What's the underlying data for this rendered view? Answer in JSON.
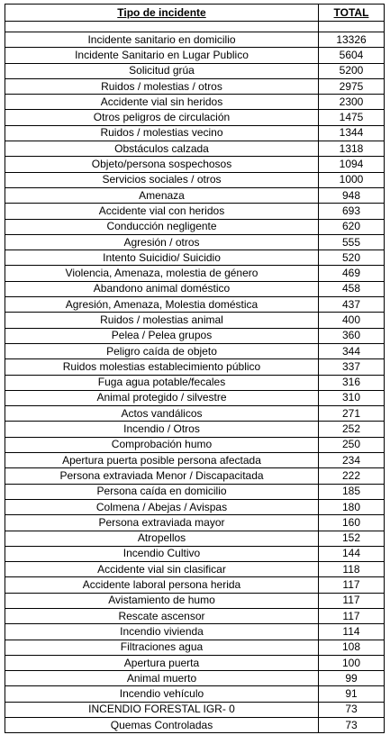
{
  "header": {
    "col_type": "Tipo de incidente",
    "col_total": "TOTAL"
  },
  "rows": [
    {
      "name": "Incidente sanitario en domicilio",
      "total": "13326"
    },
    {
      "name": "Incidente Sanitario en Lugar Publico",
      "total": "5604"
    },
    {
      "name": "Solicitud grúa",
      "total": "5200"
    },
    {
      "name": "Ruidos / molestias / otros",
      "total": "2975"
    },
    {
      "name": "Accidente vial sin heridos",
      "total": "2300"
    },
    {
      "name": "Otros peligros de circulación",
      "total": "1475"
    },
    {
      "name": "Ruidos / molestias vecino",
      "total": "1344"
    },
    {
      "name": "Obstáculos calzada",
      "total": "1318"
    },
    {
      "name": "Objeto/persona sospechosos",
      "total": "1094"
    },
    {
      "name": "Servicios sociales / otros",
      "total": "1000"
    },
    {
      "name": "Amenaza",
      "total": "948"
    },
    {
      "name": "Accidente vial con heridos",
      "total": "693"
    },
    {
      "name": "Conducción negligente",
      "total": "620"
    },
    {
      "name": "Agresión / otros",
      "total": "555"
    },
    {
      "name": "Intento Suicidio/ Suicidio",
      "total": "520"
    },
    {
      "name": "Violencia, Amenaza, molestia de género",
      "total": "469"
    },
    {
      "name": "Abandono animal doméstico",
      "total": "458"
    },
    {
      "name": "Agresión, Amenaza, Molestia doméstica",
      "total": "437"
    },
    {
      "name": "Ruidos / molestias animal",
      "total": "400"
    },
    {
      "name": "Pelea / Pelea grupos",
      "total": "360"
    },
    {
      "name": "Peligro caída de objeto",
      "total": "344"
    },
    {
      "name": "Ruidos molestias establecimiento público",
      "total": "337"
    },
    {
      "name": "Fuga agua potable/fecales",
      "total": "316"
    },
    {
      "name": "Animal protegido / silvestre",
      "total": "310"
    },
    {
      "name": "Actos vandálicos",
      "total": "271"
    },
    {
      "name": "Incendio / Otros",
      "total": "252"
    },
    {
      "name": "Comprobación humo",
      "total": "250"
    },
    {
      "name": "Apertura puerta posible persona afectada",
      "total": "234"
    },
    {
      "name": "Persona extraviada Menor / Discapacitada",
      "total": "222"
    },
    {
      "name": "Persona caída en domicilio",
      "total": "185"
    },
    {
      "name": "Colmena / Abejas / Avispas",
      "total": "180"
    },
    {
      "name": "Persona extraviada mayor",
      "total": "160"
    },
    {
      "name": "Atropellos",
      "total": "152"
    },
    {
      "name": "Incendio Cultivo",
      "total": "144"
    },
    {
      "name": "Accidente vial sin clasificar",
      "total": "118"
    },
    {
      "name": "Accidente laboral persona herida",
      "total": "117"
    },
    {
      "name": "Avistamiento de humo",
      "total": "117"
    },
    {
      "name": "Rescate ascensor",
      "total": "117"
    },
    {
      "name": "Incendio vivienda",
      "total": "114"
    },
    {
      "name": "Filtraciones agua",
      "total": "108"
    },
    {
      "name": "Apertura puerta",
      "total": "100"
    },
    {
      "name": "Animal muerto",
      "total": "99"
    },
    {
      "name": "Incendio vehículo",
      "total": "91"
    },
    {
      "name": "INCENDIO FORESTAL IGR- 0",
      "total": "73"
    },
    {
      "name": "Quemas Controladas",
      "total": "73"
    }
  ]
}
